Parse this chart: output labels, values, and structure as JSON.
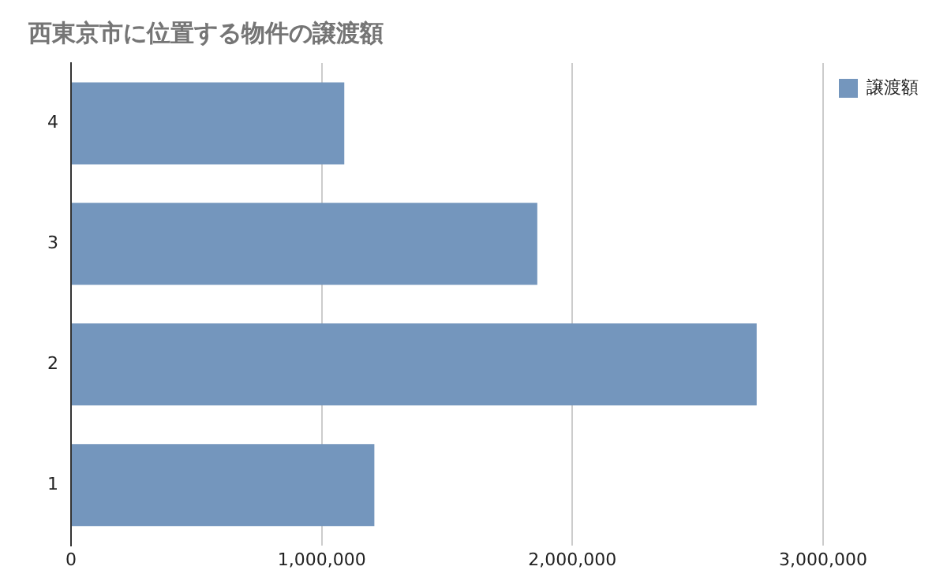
{
  "chart_data": {
    "type": "bar",
    "orientation": "horizontal",
    "title": "西東京市に位置する物件の譲渡額",
    "categories": [
      "4",
      "3",
      "2",
      "1"
    ],
    "series": [
      {
        "name": "譲渡額",
        "color": "#7496bd",
        "values": [
          1090000,
          1860000,
          2735000,
          1210000
        ]
      }
    ],
    "xlim": [
      0,
      3000000
    ],
    "xticks": [
      {
        "value": 0,
        "label": "0"
      },
      {
        "value": 1000000,
        "label": "1,000,000"
      },
      {
        "value": 2000000,
        "label": "2,000,000"
      },
      {
        "value": 3000000,
        "label": "3,000,000"
      }
    ],
    "grid": "x",
    "legend": "top right"
  }
}
